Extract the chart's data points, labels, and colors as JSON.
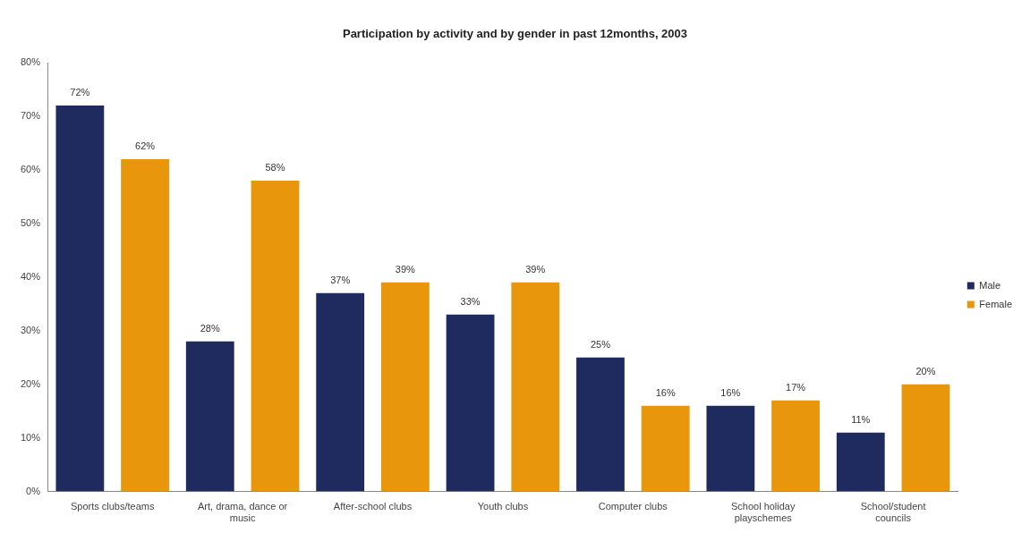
{
  "chart_data": {
    "type": "bar",
    "title": "Participation by activity and by gender in past 12months, 2003",
    "categories": [
      "Sports clubs/teams",
      "Art, drama, dance or music",
      "After-school clubs",
      "Youth clubs",
      "Computer clubs",
      "School holiday playschemes",
      "School/student councils"
    ],
    "series": [
      {
        "name": "Male",
        "color": "#1f2a5e",
        "values": [
          72,
          28,
          37,
          33,
          25,
          16,
          11
        ],
        "value_labels": [
          "72%",
          "28%",
          "37%",
          "33%",
          "25%",
          "16%",
          "11%"
        ]
      },
      {
        "name": "Female",
        "color": "#e8960c",
        "values": [
          62,
          58,
          39,
          39,
          16,
          17,
          20
        ],
        "value_labels": [
          "62%",
          "58%",
          "39%",
          "39%",
          "16%",
          "17%",
          "20%"
        ]
      }
    ],
    "ylim": [
      0,
      80
    ],
    "yticks": [
      {
        "value": 0,
        "label": "0%"
      },
      {
        "value": 10,
        "label": "10%"
      },
      {
        "value": 20,
        "label": "20%"
      },
      {
        "value": 30,
        "label": "30%"
      },
      {
        "value": 40,
        "label": "40%"
      },
      {
        "value": 50,
        "label": "50%"
      },
      {
        "value": 60,
        "label": "60%"
      },
      {
        "value": 70,
        "label": "70%"
      },
      {
        "value": 80,
        "label": "80%"
      }
    ],
    "grid": false,
    "legend": "right"
  }
}
